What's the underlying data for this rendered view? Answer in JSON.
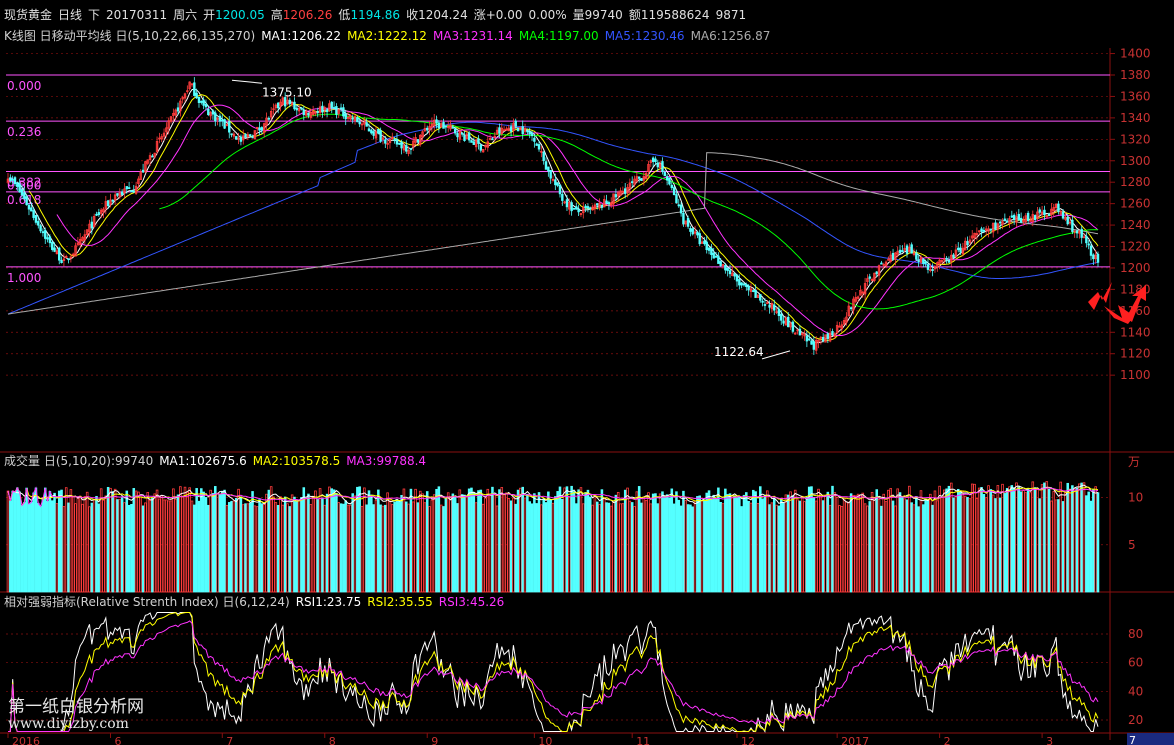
{
  "header": {
    "symbol": "现货黄金",
    "period": "日线",
    "direction": "下",
    "date": "20170311",
    "weekday": "周六",
    "open_label": "开",
    "open": "1200.05",
    "high_label": "高",
    "high": "1206.26",
    "low_label": "低",
    "low": "1194.86",
    "close_label": "收",
    "close": "1204.24",
    "change_label": "涨",
    "change": "+0.00",
    "change_pct": "0.00%",
    "volume_label": "量",
    "volume": "99740",
    "amount_label": "额",
    "amount": "119588624",
    "extra": "9871"
  },
  "price_panel": {
    "title": "K线图 日移动平均线 日(5,10,22,66,135,270)",
    "ma": [
      {
        "label": "MA1:1206.22",
        "color": "#ffffff"
      },
      {
        "label": "MA2:1222.12",
        "color": "#ffff00"
      },
      {
        "label": "MA3:1231.14",
        "color": "#ff33ff"
      },
      {
        "label": "MA4:1197.00",
        "color": "#00ff00"
      },
      {
        "label": "MA5:1230.46",
        "color": "#3355ff"
      },
      {
        "label": "MA6:1256.87",
        "color": "#aaaaaa"
      }
    ],
    "y_ticks": [
      "1400",
      "1380",
      "1360",
      "1340",
      "1320",
      "1300",
      "1280",
      "1260",
      "1240",
      "1220",
      "1200",
      "1180",
      "1160",
      "1140",
      "1120",
      "1100"
    ],
    "fib_levels": [
      {
        "label": "0.000",
        "price": 1380
      },
      {
        "label": "0.236",
        "price": 1337
      },
      {
        "label": "0.382",
        "price": 1290
      },
      {
        "label": "0.500",
        "price": 1290
      },
      {
        "label": "0.618",
        "price": 1271
      },
      {
        "label": "1.000",
        "price": 1201
      }
    ],
    "annotations": [
      {
        "label": "1375.10",
        "price": 1375.1
      },
      {
        "label": "1122.64",
        "price": 1122.64
      }
    ]
  },
  "volume_panel": {
    "title": "成交量 日(5,10,20)",
    "value": ":99740",
    "ma": [
      {
        "label": "MA1:102675.6",
        "color": "#ffffff"
      },
      {
        "label": "MA2:103578.5",
        "color": "#ffff00"
      },
      {
        "label": "MA3:99788.4",
        "color": "#ff33ff"
      }
    ],
    "unit": "万",
    "y_ticks": [
      "10",
      "5"
    ]
  },
  "rsi_panel": {
    "title": "相对强弱指标(Relative Strenth Index) 日(6,12,24)",
    "rsi": [
      {
        "label": "RSI1:23.75",
        "color": "#ffffff"
      },
      {
        "label": "RSI2:35.55",
        "color": "#ffff00"
      },
      {
        "label": "RSI3:45.26",
        "color": "#ff33ff"
      }
    ],
    "y_ticks": [
      "80",
      "60",
      "40",
      "20"
    ]
  },
  "x_axis": {
    "labels": [
      "2016",
      "6",
      "7",
      "8",
      "9",
      "10",
      "11",
      "12",
      "2017",
      "2",
      "3"
    ],
    "corner": "7"
  },
  "watermark": {
    "line1": "第一纸白银分析网",
    "line2": "www.diyizby.com"
  },
  "colors": {
    "up": "#ff3c3c",
    "down": "#54ffff",
    "grid": "#8a0f0f",
    "fib": "#ff55ff",
    "axis_text": "#c83232",
    "arrow": "#ff2020"
  }
}
